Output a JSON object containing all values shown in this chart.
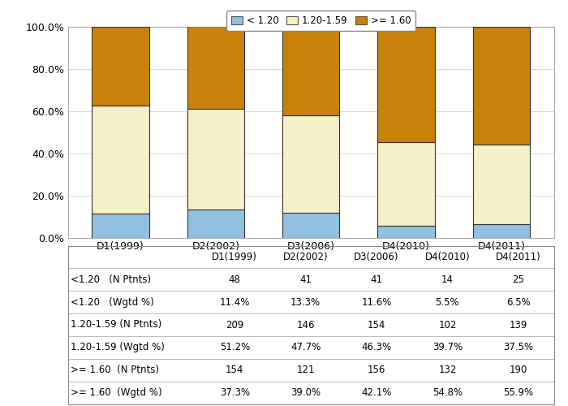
{
  "categories": [
    "D1(1999)",
    "D2(2002)",
    "D3(2006)",
    "D4(2010)",
    "D4(2011)"
  ],
  "less_than_120": [
    11.4,
    13.3,
    11.6,
    5.5,
    6.5
  ],
  "between_120_159": [
    51.2,
    47.7,
    46.3,
    39.7,
    37.5
  ],
  "gte_160": [
    37.3,
    39.0,
    42.1,
    54.8,
    55.9
  ],
  "color_less": "#92c0e0",
  "color_mid": "#f5f0c8",
  "color_high": "#c8820a",
  "table_rows": [
    {
      "label": "<1.20   (N Ptnts)",
      "values": [
        "48",
        "41",
        "41",
        "14",
        "25"
      ]
    },
    {
      "label": "<1.20   (Wgtd %)",
      "values": [
        "11.4%",
        "13.3%",
        "11.6%",
        "5.5%",
        "6.5%"
      ]
    },
    {
      "label": "1.20-1.59 (N Ptnts)",
      "values": [
        "209",
        "146",
        "154",
        "102",
        "139"
      ]
    },
    {
      "label": "1.20-1.59 (Wgtd %)",
      "values": [
        "51.2%",
        "47.7%",
        "46.3%",
        "39.7%",
        "37.5%"
      ]
    },
    {
      "label": ">= 1.60  (N Ptnts)",
      "values": [
        "154",
        "121",
        "156",
        "132",
        "190"
      ]
    },
    {
      "label": ">= 1.60  (Wgtd %)",
      "values": [
        "37.3%",
        "39.0%",
        "42.1%",
        "54.8%",
        "55.9%"
      ]
    }
  ],
  "legend_labels": [
    "< 1.20",
    "1.20-1.59",
    ">= 1.60"
  ],
  "yticks": [
    0,
    20,
    40,
    60,
    80,
    100
  ],
  "bar_width": 0.6,
  "chart_bg": "#ffffff",
  "fig_bg": "#ffffff",
  "grid_color": "#d8d8d8",
  "spine_color": "#aaaaaa",
  "bar_edge_color": "#333333",
  "bar_edge_lw": 0.8
}
